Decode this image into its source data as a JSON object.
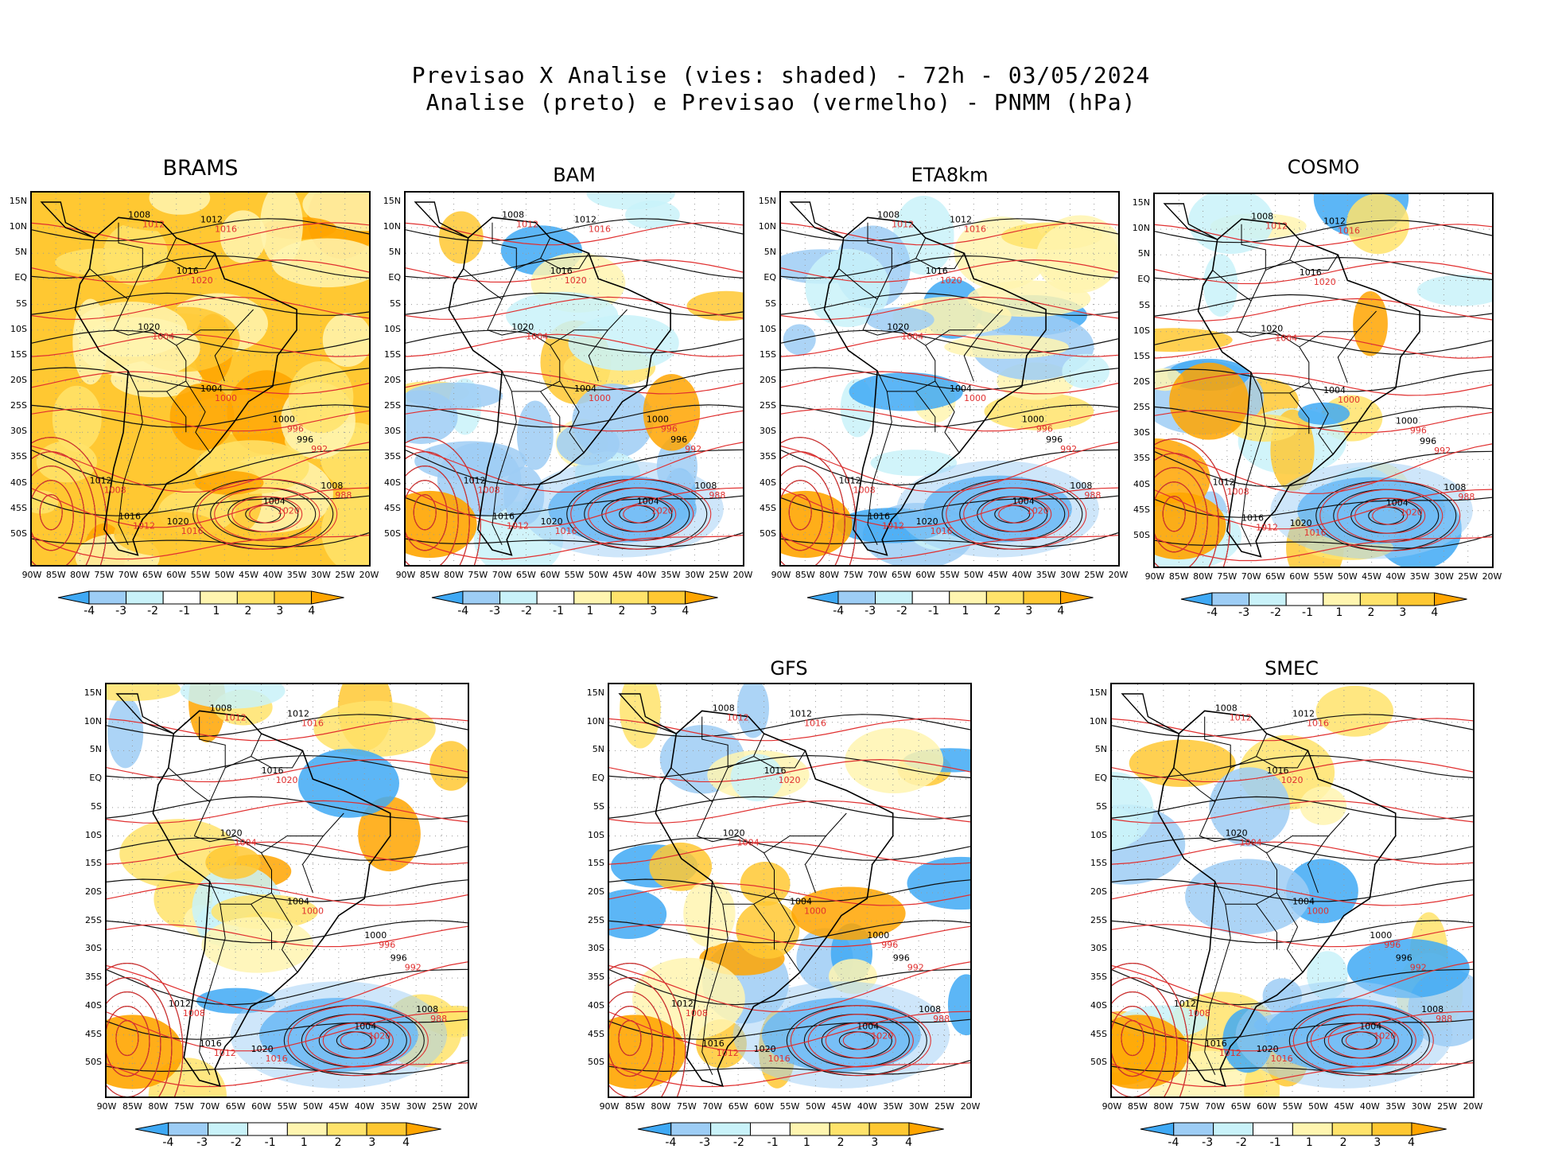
{
  "title": {
    "line1": "Previsao X Analise (vies: shaded) - 72h - 03/05/2024",
    "line2": "Analise (preto) e Previsao (vermelho) - PNMM (hPa)"
  },
  "panels": [
    {
      "id": "brams",
      "name": "BRAMS",
      "bias": "warm"
    },
    {
      "id": "bam",
      "name": "BAM",
      "bias": "mixed"
    },
    {
      "id": "eta8km",
      "name": "ETA8km",
      "bias": "cold"
    },
    {
      "id": "cosmo",
      "name": "COSMO",
      "bias": "mixed"
    },
    {
      "id": "unnamed",
      "name": "",
      "bias": "mixed"
    },
    {
      "id": "gfs",
      "name": "GFS",
      "bias": "mixed"
    },
    {
      "id": "smec",
      "name": "SMEC",
      "bias": "mixed"
    }
  ],
  "lat_labels": [
    "15N",
    "10N",
    "5N",
    "EQ",
    "5S",
    "10S",
    "15S",
    "20S",
    "25S",
    "30S",
    "35S",
    "40S",
    "45S",
    "50S"
  ],
  "lon_labels": [
    "90W",
    "85W",
    "80W",
    "75W",
    "70W",
    "65W",
    "60W",
    "55W",
    "50W",
    "45W",
    "40W",
    "35W",
    "30W",
    "25W",
    "20W"
  ],
  "contour_labels_black": [
    "1008",
    "1012",
    "1016",
    "1020",
    "1004",
    "1000",
    "996"
  ],
  "contour_labels_red": [
    "1008",
    "1012",
    "1016",
    "1020",
    "1004",
    "1000",
    "996",
    "992",
    "988"
  ],
  "colorbar": {
    "labels": [
      "-4",
      "-3",
      "-2",
      "-1",
      "1",
      "2",
      "3",
      "4"
    ],
    "colors": [
      "#3fa9f5",
      "#9dcdf5",
      "#c9f2f9",
      "#ffffff",
      "#fff5b0",
      "#ffe36b",
      "#ffc832",
      "#ffa500"
    ]
  }
}
